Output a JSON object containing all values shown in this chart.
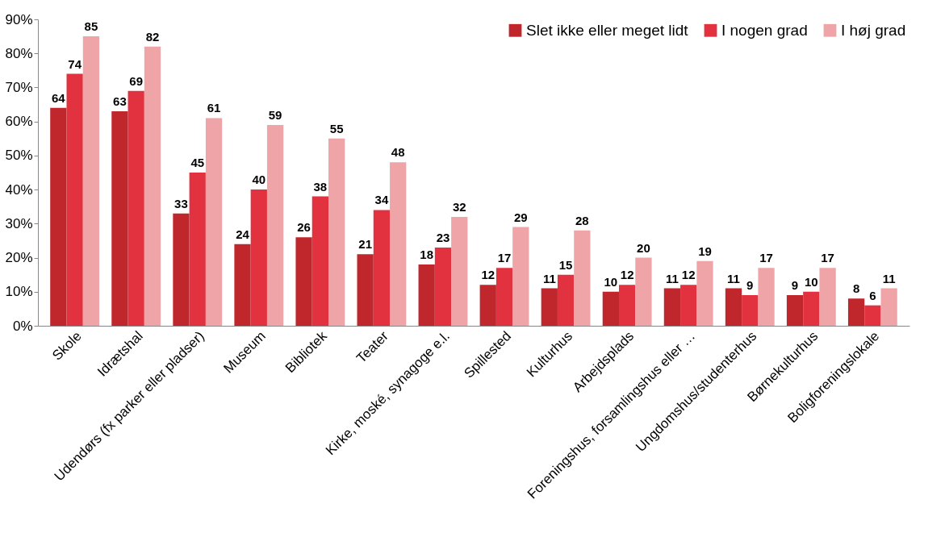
{
  "chart_data": {
    "type": "bar",
    "categories": [
      "Skole",
      "Idrætshal",
      "Udendørs (fx parker eller pladser)",
      "Museum",
      "Bibliotek",
      "Teater",
      "Kirke, moské, synagoge e.l.",
      "Spillested",
      "Kulturhus",
      "Arbejdsplads",
      "Foreningshus, forsamlingshus eller …",
      "Ungdomshus/studenterhus",
      "Børnekulturhus",
      "Boligforeningslokale"
    ],
    "series": [
      {
        "name": "Slet ikke eller meget lidt",
        "color": "#c0272d",
        "values": [
          64,
          63,
          33,
          24,
          26,
          21,
          18,
          12,
          11,
          10,
          11,
          11,
          9,
          8
        ]
      },
      {
        "name": "I nogen grad",
        "color": "#e2323f",
        "values": [
          74,
          69,
          45,
          40,
          38,
          34,
          23,
          17,
          15,
          12,
          12,
          9,
          10,
          6
        ]
      },
      {
        "name": "I høj grad",
        "color": "#efa5a8",
        "values": [
          85,
          82,
          61,
          59,
          55,
          48,
          32,
          29,
          28,
          20,
          19,
          17,
          17,
          11
        ]
      }
    ],
    "ylim": [
      0,
      90
    ],
    "yticks": [
      {
        "value": 0,
        "label": "0%"
      },
      {
        "value": 10,
        "label": "10%"
      },
      {
        "value": 20,
        "label": "20%"
      },
      {
        "value": 30,
        "label": "30%"
      },
      {
        "value": 40,
        "label": "40%"
      },
      {
        "value": 50,
        "label": "50%"
      },
      {
        "value": 60,
        "label": "60%"
      },
      {
        "value": 70,
        "label": "70%"
      },
      {
        "value": 80,
        "label": "80%"
      },
      {
        "value": 90,
        "label": "90%"
      }
    ],
    "data_labels": true,
    "grid": false,
    "legend": "top right"
  }
}
